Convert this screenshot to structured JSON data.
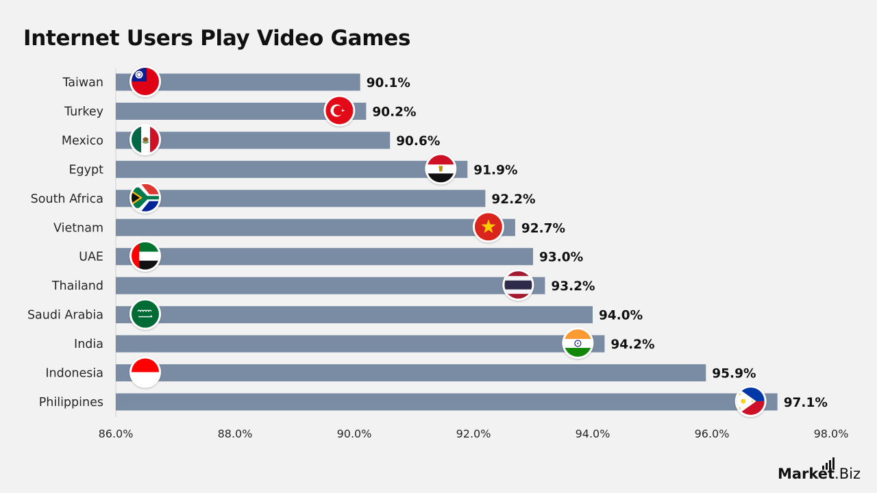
{
  "title": "Internet Users Play Video Games",
  "brand": {
    "name_bold": "Market",
    "name_rest": ".Biz"
  },
  "colors": {
    "bar": "#7a8ca4",
    "background": "#f2f2f2",
    "text": "#111111"
  },
  "chart_data": {
    "type": "bar",
    "orientation": "horizontal",
    "title": "Internet Users Play Video Games",
    "categories": [
      "Taiwan",
      "Turkey",
      "Mexico",
      "Egypt",
      "South Africa",
      "Vietnam",
      "UAE",
      "Thailand",
      "Saudi Arabia",
      "India",
      "Indonesia",
      "Philippines"
    ],
    "values": [
      90.1,
      90.2,
      90.6,
      91.9,
      92.2,
      92.7,
      93.0,
      93.2,
      94.0,
      94.2,
      95.9,
      97.1
    ],
    "value_labels": [
      "90.1%",
      "90.2%",
      "90.6%",
      "91.9%",
      "92.2%",
      "92.7%",
      "93.0%",
      "93.2%",
      "94.0%",
      "94.2%",
      "95.9%",
      "97.1%"
    ],
    "flag_icons": [
      "taiwan-flag-icon",
      "turkey-flag-icon",
      "mexico-flag-icon",
      "egypt-flag-icon",
      "south-africa-flag-icon",
      "vietnam-flag-icon",
      "uae-flag-icon",
      "thailand-flag-icon",
      "saudi-arabia-flag-icon",
      "india-flag-icon",
      "indonesia-flag-icon",
      "philippines-flag-icon"
    ],
    "xlim": [
      86.0,
      98.0
    ],
    "xticks": [
      86.0,
      88.0,
      90.0,
      92.0,
      94.0,
      96.0,
      98.0
    ],
    "xtick_labels": [
      "86.0%",
      "88.0%",
      "90.0%",
      "92.0%",
      "94.0%",
      "96.0%",
      "98.0%"
    ],
    "grid": false,
    "xlabel": "",
    "ylabel": ""
  }
}
